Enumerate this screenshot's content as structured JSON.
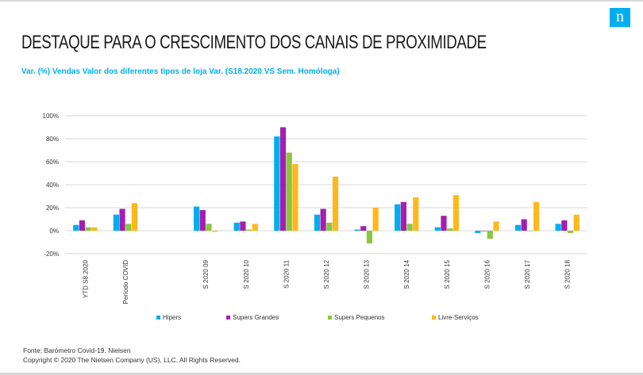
{
  "brand": {
    "logo_letter": "n",
    "logo_color": "#00aeef"
  },
  "title": "DESTAQUE PARA O CRESCIMENTO DOS CANAIS DE PROXIMIDADE",
  "subtitle": "Var. (%) Vendas Valor dos diferentes tipos de loja Var. (S18.2020 VS Sem. Homóloga)",
  "footer": {
    "source": "Fonte: Barómetro Covid-19, Nielsen",
    "copyright": "Copyright © 2020 The Nielsen Company (US), LLC. All Rights Reserved."
  },
  "chart_data": {
    "type": "bar",
    "categories": [
      "YTD S8.2020",
      "Período COVID",
      "",
      "S 2020 09",
      "S 2020 10",
      "S 2020 11",
      "S 2020 12",
      "S 2020 13",
      "S 2020 14",
      "S 2020 15",
      "S 2020 16",
      "S 2020 17",
      "S 2020 18"
    ],
    "series": [
      {
        "name": "Hipers",
        "color": "#00aeef",
        "values": [
          5,
          14,
          null,
          21,
          7,
          82,
          14,
          1,
          23,
          3,
          -2,
          5,
          6
        ]
      },
      {
        "name": "Supers Grandes",
        "color": "#a31fb0",
        "values": [
          9,
          19,
          null,
          18,
          8,
          90,
          19,
          4,
          25,
          13,
          0,
          10,
          9
        ]
      },
      {
        "name": "Supers Pequenos",
        "color": "#8cc63f",
        "values": [
          3,
          6,
          null,
          6,
          1,
          68,
          7,
          -11,
          6,
          2,
          -7,
          0,
          -2
        ]
      },
      {
        "name": "Livre-Serviços",
        "color": "#ffb81c",
        "values": [
          3,
          24,
          null,
          -1,
          6,
          58,
          47,
          20,
          29,
          31,
          8,
          25,
          14
        ]
      }
    ],
    "ylim": [
      -20,
      100
    ],
    "yticks": [
      -20,
      0,
      20,
      40,
      60,
      80,
      100
    ],
    "ytick_labels": [
      "-20%",
      "0%",
      "20%",
      "40%",
      "60%",
      "80%",
      "100%"
    ],
    "grid": true,
    "legend_position": "bottom"
  }
}
